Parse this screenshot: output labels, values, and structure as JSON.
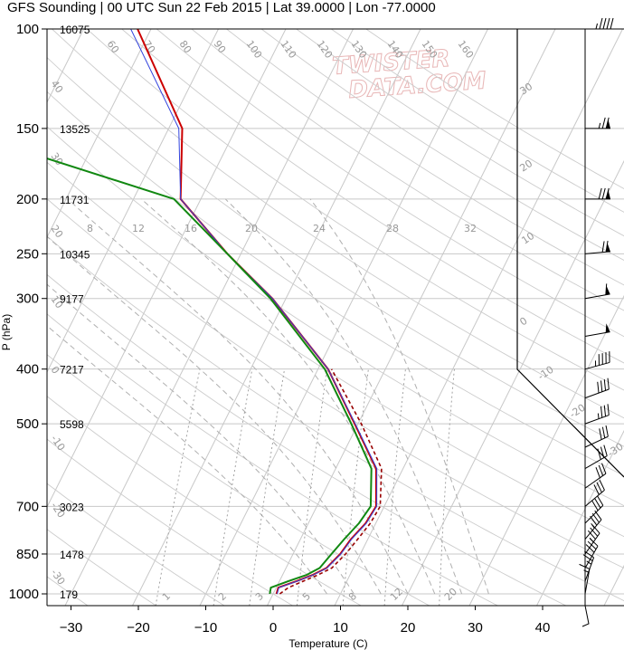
{
  "title": "GFS Sounding | 00 UTC Sun 22 Feb 2015 | Lat 39.0000 | Lon -77.0000",
  "watermark": [
    "TWISTER",
    "DATA.COM"
  ],
  "chart_data": {
    "type": "line",
    "chart_kind": "skew-t log-p sounding",
    "xlabel": "Temperature (C)",
    "ylabel": "P (hPa)",
    "xlim": [
      -34,
      50
    ],
    "ylim": [
      1000,
      100
    ],
    "y_scale": "log",
    "grid": true,
    "x_ticks": [
      -30,
      -20,
      -10,
      0,
      10,
      20,
      30,
      40
    ],
    "pressure_ticks": [
      {
        "p": 100,
        "label": "100",
        "height": "16075"
      },
      {
        "p": 150,
        "label": "150",
        "height": "13525"
      },
      {
        "p": 200,
        "label": "200",
        "height": "11731"
      },
      {
        "p": 250,
        "label": "250",
        "height": "10345"
      },
      {
        "p": 300,
        "label": "300",
        "height": "9177"
      },
      {
        "p": 400,
        "label": "400",
        "height": "7217"
      },
      {
        "p": 500,
        "label": "500",
        "height": "5598"
      },
      {
        "p": 700,
        "label": "700",
        "height": "3023"
      },
      {
        "p": 850,
        "label": "850",
        "height": "1478"
      },
      {
        "p": 1000,
        "label": "1000",
        "height": "179"
      }
    ],
    "mixing_ratio_labels": [
      "1",
      "2",
      "3",
      "5",
      "8",
      "12",
      "20"
    ],
    "wetbulb_labels": [
      "8",
      "12",
      "16",
      "20",
      "24",
      "28",
      "32"
    ],
    "dry_adiabat_labels": [
      "60",
      "70",
      "80",
      "90",
      "100",
      "110",
      "120",
      "130",
      "140",
      "150",
      "160"
    ],
    "isotherm_labels": [
      "40",
      "30",
      "20",
      "10",
      "0",
      "-10",
      "-20",
      "-30"
    ],
    "series": [
      {
        "role": "temperature",
        "color": "#cc0000",
        "points": [
          [
            1000,
            0.5
          ],
          [
            975,
            0.3
          ],
          [
            950,
            2.5
          ],
          [
            925,
            4.5
          ],
          [
            900,
            6.0
          ],
          [
            850,
            7.0
          ],
          [
            800,
            7.5
          ],
          [
            750,
            8.5
          ],
          [
            700,
            8.8
          ],
          [
            600,
            6.0
          ],
          [
            500,
            -0.5
          ],
          [
            400,
            -8.5
          ],
          [
            300,
            -22.0
          ],
          [
            250,
            -32.0
          ],
          [
            200,
            -43.0
          ],
          [
            150,
            -48.0
          ],
          [
            100,
            -62.0
          ]
        ]
      },
      {
        "role": "virtual temperature",
        "color": "#3344dd",
        "points": [
          [
            1000,
            0.6
          ],
          [
            975,
            0.4
          ],
          [
            950,
            2.6
          ],
          [
            925,
            4.6
          ],
          [
            900,
            6.1
          ],
          [
            850,
            7.1
          ],
          [
            800,
            7.6
          ],
          [
            750,
            8.6
          ],
          [
            700,
            8.9
          ],
          [
            600,
            6.1
          ],
          [
            500,
            -0.4
          ],
          [
            400,
            -8.5
          ],
          [
            300,
            -22.0
          ],
          [
            250,
            -32.0
          ],
          [
            200,
            -43.0
          ],
          [
            150,
            -48.5
          ],
          [
            100,
            -63.0
          ]
        ]
      },
      {
        "role": "dewpoint",
        "color": "#118811",
        "points": [
          [
            1000,
            -0.5
          ],
          [
            975,
            -0.8
          ],
          [
            950,
            1.3
          ],
          [
            925,
            3.6
          ],
          [
            900,
            5.0
          ],
          [
            850,
            5.7
          ],
          [
            800,
            6.5
          ],
          [
            750,
            7.5
          ],
          [
            700,
            8.0
          ],
          [
            600,
            5.3
          ],
          [
            500,
            -1.0
          ],
          [
            400,
            -9.0
          ],
          [
            300,
            -22.3
          ],
          [
            250,
            -32.0
          ],
          [
            200,
            -44.0
          ],
          [
            150,
            -82.0
          ],
          [
            100,
            -82.0
          ]
        ]
      },
      {
        "role": "parcel",
        "color": "#990000",
        "points": [
          [
            1000,
            1.0
          ],
          [
            975,
            1.8
          ],
          [
            950,
            3.5
          ],
          [
            925,
            5.3
          ],
          [
            900,
            6.8
          ],
          [
            850,
            7.8
          ],
          [
            800,
            8.5
          ],
          [
            750,
            9.2
          ],
          [
            700,
            9.4
          ],
          [
            600,
            6.8
          ],
          [
            500,
            0.5
          ],
          [
            400,
            -8.0
          ]
        ]
      }
    ],
    "wind_barbs_pressure": [
      100,
      150,
      200,
      250,
      300,
      350,
      400,
      450,
      500,
      550,
      600,
      650,
      700,
      750,
      800,
      850,
      900,
      950,
      1000
    ],
    "wind_barbs": [
      {
        "p": 100,
        "dir": 270,
        "spd": 45
      },
      {
        "p": 150,
        "dir": 270,
        "spd": 75
      },
      {
        "p": 200,
        "dir": 270,
        "spd": 80
      },
      {
        "p": 250,
        "dir": 265,
        "spd": 70
      },
      {
        "p": 300,
        "dir": 260,
        "spd": 60
      },
      {
        "p": 350,
        "dir": 260,
        "spd": 50
      },
      {
        "p": 400,
        "dir": 255,
        "spd": 45
      },
      {
        "p": 450,
        "dir": 250,
        "spd": 40
      },
      {
        "p": 500,
        "dir": 250,
        "spd": 35
      },
      {
        "p": 550,
        "dir": 245,
        "spd": 30
      },
      {
        "p": 600,
        "dir": 240,
        "spd": 30
      },
      {
        "p": 650,
        "dir": 235,
        "spd": 30
      },
      {
        "p": 700,
        "dir": 230,
        "spd": 30
      },
      {
        "p": 750,
        "dir": 225,
        "spd": 30
      },
      {
        "p": 800,
        "dir": 220,
        "spd": 35
      },
      {
        "p": 850,
        "dir": 215,
        "spd": 35
      },
      {
        "p": 900,
        "dir": 210,
        "spd": 30
      },
      {
        "p": 950,
        "dir": 200,
        "spd": 25
      },
      {
        "p": 1000,
        "dir": 190,
        "spd": 15
      }
    ]
  }
}
